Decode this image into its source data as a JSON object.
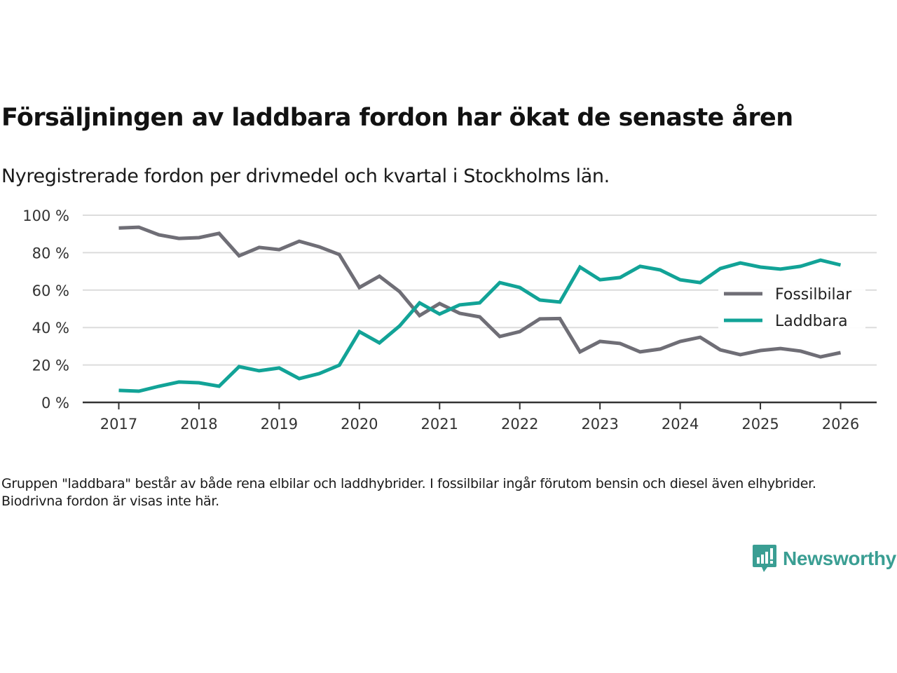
{
  "header": {
    "title": "Försäljningen av laddbara fordon har ökat de senaste åren",
    "subtitle": "Nyregistrerade fordon per drivmedel och kvartal i Stockholms län."
  },
  "footer": {
    "note": "Gruppen \"laddbara\" består av både rena elbilar och laddhybrider. I fossilbilar ingår förutom bensin och diesel även elhybrider. Biodrivna fordon är visas inte här.",
    "brand": "Newsworthy",
    "brand_icon": "chart-speech-bubble-icon"
  },
  "colors": {
    "fossil": "#6f6e76",
    "laddbara": "#12a397",
    "grid": "#dcdcdc",
    "axis": "#333333",
    "brand": "#3a9e93"
  },
  "chart_data": {
    "type": "line",
    "title": "Försäljningen av laddbara fordon har ökat de senaste åren",
    "subtitle": "Nyregistrerade fordon per drivmedel och kvartal i Stockholms län.",
    "xlabel": "",
    "ylabel": "",
    "x_unit": "year (quarterly)",
    "x_start": 2017,
    "x_step": 0.25,
    "xlim": [
      2016.55,
      2026.45
    ],
    "ylim": [
      0,
      100
    ],
    "grid": true,
    "legend_position": "right-middle",
    "y_ticks": [
      0,
      20,
      40,
      60,
      80,
      100
    ],
    "y_tick_labels": [
      "0 %",
      "20 %",
      "40 %",
      "60 %",
      "80 %",
      "100 %"
    ],
    "x_ticks": [
      2017,
      2018,
      2019,
      2020,
      2021,
      2022,
      2023,
      2024,
      2025,
      2026
    ],
    "x_tick_labels": [
      "2017",
      "2018",
      "2019",
      "2020",
      "2021",
      "2022",
      "2023",
      "2024",
      "2025",
      "2026"
    ],
    "series": [
      {
        "name": "Fossilbilar",
        "color": "#6f6e76",
        "values": [
          93.2,
          93.6,
          89.5,
          87.6,
          88.0,
          90.3,
          78.3,
          82.8,
          81.6,
          86.1,
          83.1,
          79.0,
          61.4,
          67.4,
          59.2,
          46.4,
          52.8,
          47.6,
          45.7,
          35.2,
          37.8,
          44.6,
          44.8,
          27.0,
          32.6,
          31.5,
          27.0,
          28.5,
          32.6,
          34.8,
          28.1,
          25.5,
          27.7,
          28.8,
          27.4,
          24.3,
          26.6
        ]
      },
      {
        "name": "Laddbara",
        "color": "#12a397",
        "values": [
          6.4,
          6.0,
          8.6,
          10.9,
          10.5,
          8.6,
          19.1,
          16.9,
          18.4,
          12.7,
          15.4,
          19.9,
          37.8,
          31.8,
          40.8,
          53.2,
          47.2,
          52.1,
          53.2,
          64.0,
          61.4,
          54.7,
          53.6,
          72.3,
          65.5,
          66.7,
          72.7,
          70.8,
          65.5,
          64.0,
          71.5,
          74.5,
          72.3,
          71.2,
          72.7,
          76.0,
          73.4
        ]
      }
    ]
  }
}
